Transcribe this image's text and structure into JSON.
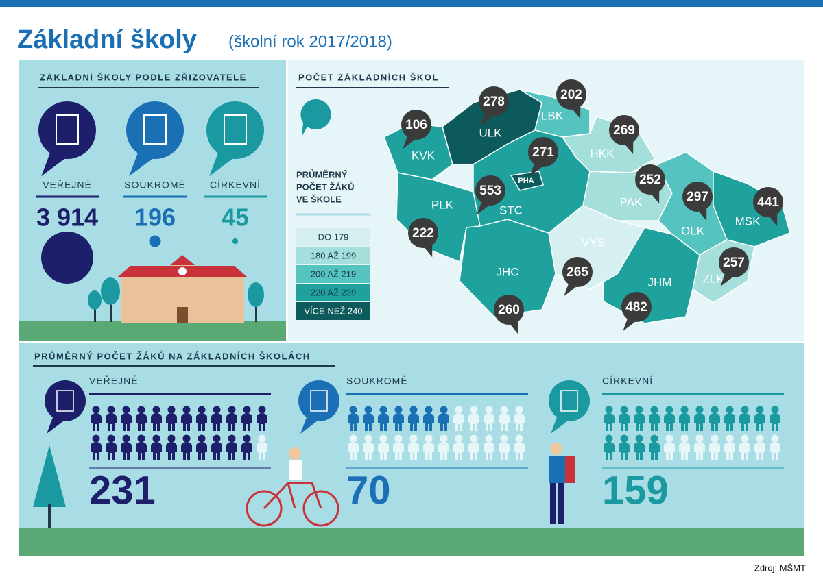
{
  "header": {
    "title": "Základní školy",
    "subtitle": "(školní rok 2017/2018)"
  },
  "founders": {
    "title": "ZÁKLADNÍ ŠKOLY PODLE ZŘIZOVATELE",
    "items": [
      {
        "label": "VEŘEJNÉ",
        "value": 3914,
        "value_label": "3 914",
        "color": "#1d1f6b"
      },
      {
        "label": "SOUKROMÉ",
        "value": 196,
        "color": "#1a6fb5"
      },
      {
        "label": "CÍRKEVNÍ",
        "value": 45,
        "color": "#1a9aa0"
      }
    ]
  },
  "map": {
    "title": "POČET ZÁKLADNÍCH ŠKOL",
    "legend_title": [
      "PRŮMĚRNÝ",
      "POČET ŽÁKŮ",
      "VE ŠKOLE"
    ],
    "legend": [
      {
        "label": "DO 179",
        "color": "#d6eff0"
      },
      {
        "label": "180 AŽ 199",
        "color": "#a5dfdc"
      },
      {
        "label": "200 AŽ 219",
        "color": "#55c3bf"
      },
      {
        "label": "220 AŽ 239",
        "color": "#1fa29d"
      },
      {
        "label": "VÍCE NEŽ 240",
        "color": "#0d5a5c"
      }
    ],
    "regions": [
      {
        "code": "KVK",
        "count": 106,
        "color": "#1fa29d"
      },
      {
        "code": "ULK",
        "count": 278,
        "color": "#0d5a5c"
      },
      {
        "code": "LBK",
        "count": 202,
        "color": "#55c3bf"
      },
      {
        "code": "HKK",
        "count": 269,
        "color": "#a5dfdc"
      },
      {
        "code": "PAK",
        "count": 252,
        "color": "#a5dfdc"
      },
      {
        "code": "OLK",
        "count": 297,
        "color": "#55c3bf"
      },
      {
        "code": "MSK",
        "count": 441,
        "color": "#1fa29d"
      },
      {
        "code": "ZLK",
        "count": 257,
        "color": "#a5dfdc"
      },
      {
        "code": "JHM",
        "count": 482,
        "color": "#1fa29d"
      },
      {
        "code": "VYS",
        "count": 265,
        "color": "#d6eff0"
      },
      {
        "code": "JHC",
        "count": 260,
        "color": "#1fa29d"
      },
      {
        "code": "PLK",
        "count": 222,
        "color": "#1fa29d"
      },
      {
        "code": "STC",
        "count": 553,
        "color": "#1fa29d"
      },
      {
        "code": "PHA",
        "count": 271,
        "color": "#0d5a5c"
      }
    ]
  },
  "averages": {
    "title": "PRŮMĚRNÝ POČET ŽÁKŮ NA ZÁKLADNÍCH ŠKOLÁCH",
    "items": [
      {
        "label": "VEŘEJNÉ",
        "value": 231,
        "color": "#1d1f6b"
      },
      {
        "label": "SOUKROMÉ",
        "value": 70,
        "color": "#1a6fb5"
      },
      {
        "label": "CÍRKEVNÍ",
        "value": 159,
        "color": "#1a9aa0"
      }
    ]
  },
  "source": "Zdroj: MŠMT"
}
